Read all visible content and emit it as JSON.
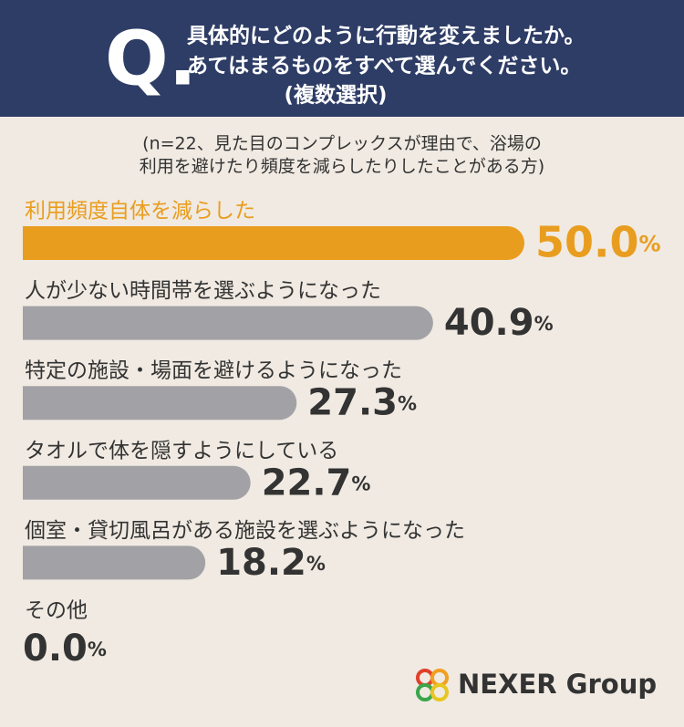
{
  "chart_data": {
    "type": "bar",
    "title_mark": "Q.",
    "title_lines": [
      "具体的にどのように行動を変えましたか。",
      "あてはまるものをすべて選んでください。",
      "(複数選択)"
    ],
    "subtitle_lines": [
      "(n=22、見た目のコンプレックスが理由で、浴場の",
      "利用を避けたり頻度を減らしたりしたことがある方)"
    ],
    "categories": [
      "利用頻度自体を減らした",
      "人が少ない時間帯を選ぶようになった",
      "特定の施設・場面を避けるようになった",
      "タオルで体を隠すようにしている",
      "個室・貸切風呂がある施設を選ぶようになった",
      "その他"
    ],
    "values": [
      50.0,
      40.9,
      27.3,
      22.7,
      18.2,
      0.0
    ],
    "value_labels": [
      "50.0",
      "40.9",
      "27.3",
      "22.7",
      "18.2",
      "0.0"
    ],
    "unit": "%",
    "colors": [
      "#e99d1f",
      "#a2a2a6",
      "#a2a2a6",
      "#a2a2a6",
      "#a2a2a6",
      "#a2a2a6"
    ],
    "label_colors": [
      "#e99d1f",
      "#333333",
      "#333333",
      "#333333",
      "#333333",
      "#333333"
    ],
    "logo": "NEXER Group"
  }
}
